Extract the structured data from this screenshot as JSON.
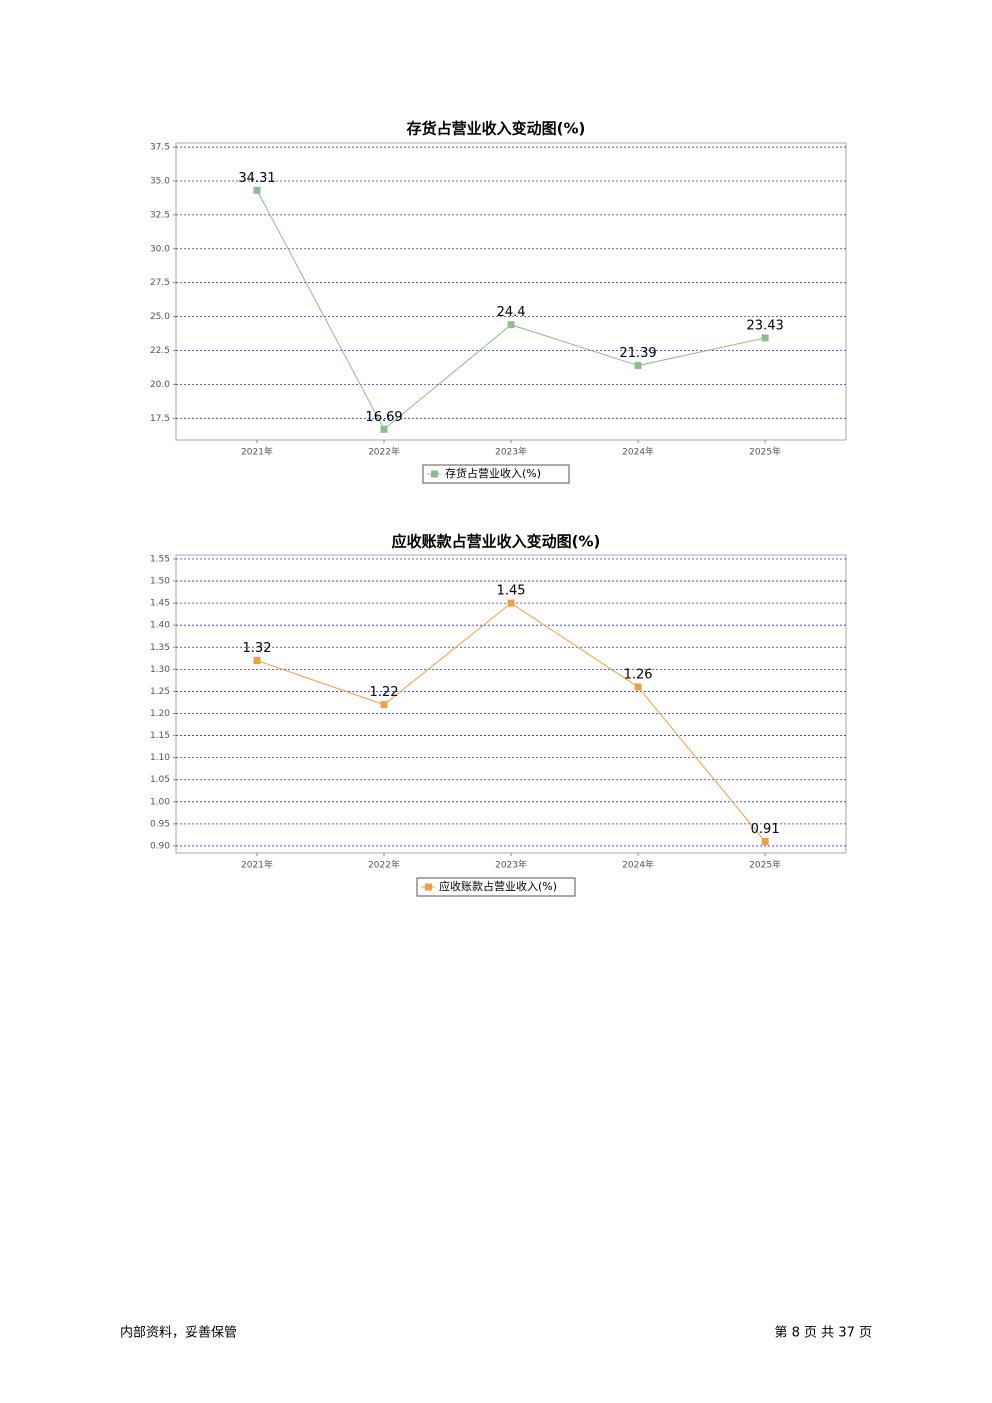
{
  "chart_data": [
    {
      "type": "line",
      "title": "存货占营业收入变动图(%)",
      "categories": [
        "2021年",
        "2022年",
        "2023年",
        "2024年",
        "2025年"
      ],
      "series": [
        {
          "name": "存货占营业收入(%)",
          "color": "#8fbc8f",
          "values": [
            34.31,
            16.69,
            24.4,
            21.39,
            23.43
          ]
        }
      ],
      "ylim": [
        15.9,
        37.8
      ],
      "yticks": [
        17.5,
        {
          "value": 20,
          "label": "20.0"
        },
        22.5,
        {
          "value": 25,
          "label": "25.0"
        },
        27.5,
        {
          "value": 30,
          "label": "30.0"
        },
        32.5,
        {
          "value": 35,
          "label": "35.0"
        },
        37.5
      ],
      "grid": true,
      "legend": "bottom"
    },
    {
      "type": "line",
      "title": "应收账款占营业收入变动图(%)",
      "categories": [
        "2021年",
        "2022年",
        "2023年",
        "2024年",
        "2025年"
      ],
      "series": [
        {
          "name": "应收账款占营业收入(%)",
          "color": "#f0a040",
          "values": [
            1.32,
            1.22,
            1.45,
            1.26,
            0.91
          ]
        }
      ],
      "ylim": [
        0.884,
        1.559
      ],
      "yticks": [
        {
          "value": 0.9,
          "label": "0.90"
        },
        0.95,
        {
          "value": 1,
          "label": "1.00"
        },
        1.05,
        {
          "value": 1.1,
          "label": "1.10"
        },
        1.15,
        {
          "value": 1.2,
          "label": "1.20"
        },
        1.25,
        {
          "value": 1.3,
          "label": "1.30"
        },
        1.35,
        {
          "value": 1.4,
          "label": "1.40"
        },
        1.45,
        {
          "value": 1.5,
          "label": "1.50"
        },
        1.55
      ],
      "grid": true,
      "legend": "bottom"
    }
  ],
  "footer": {
    "left": "内部资料，妥善保管",
    "page": "第 8 页 共 37 页"
  }
}
